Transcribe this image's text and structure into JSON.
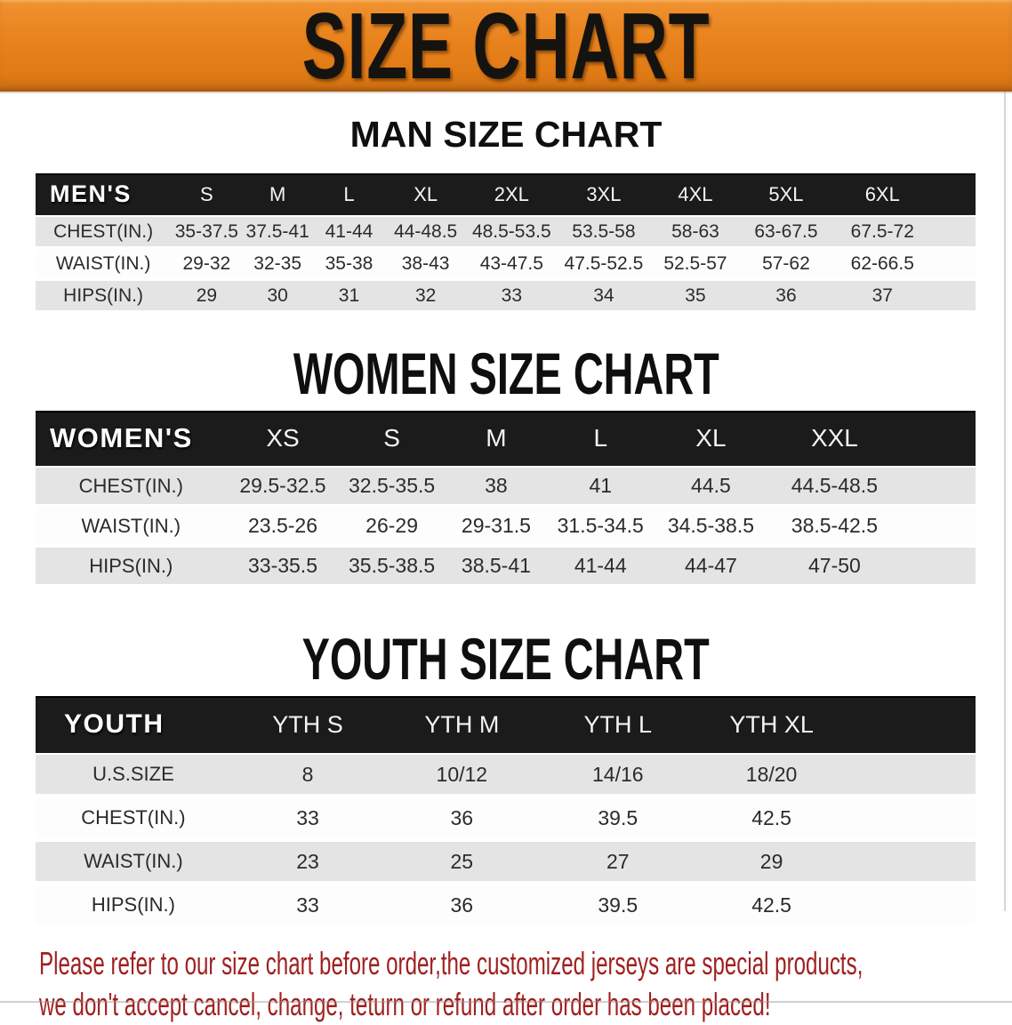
{
  "banner": {
    "title": "SIZE CHART",
    "bg_color": "#e8821c",
    "text_color": "#151310"
  },
  "sections": [
    {
      "id": "men",
      "title": "MAN SIZE CHART",
      "header_label": "MEN'S",
      "columns": [
        "S",
        "M",
        "L",
        "XL",
        "2XL",
        "3XL",
        "4XL",
        "5XL",
        "6XL"
      ],
      "rows": [
        {
          "label": "CHEST(IN.)",
          "values": [
            "35-37.5",
            "37.5-41",
            "41-44",
            "44-48.5",
            "48.5-53.5",
            "53.5-58",
            "58-63",
            "63-67.5",
            "67.5-72"
          ]
        },
        {
          "label": "WAIST(IN.)",
          "values": [
            "29-32",
            "32-35",
            "35-38",
            "38-43",
            "43-47.5",
            "47.5-52.5",
            "52.5-57",
            "57-62",
            "62-66.5"
          ]
        },
        {
          "label": "HIPS(IN.)",
          "values": [
            "29",
            "30",
            "31",
            "32",
            "33",
            "34",
            "35",
            "36",
            "37"
          ]
        }
      ]
    },
    {
      "id": "women",
      "title": "WOMEN SIZE CHART",
      "header_label": "WOMEN'S",
      "columns": [
        "XS",
        "S",
        "M",
        "L",
        "XL",
        "XXL"
      ],
      "rows": [
        {
          "label": "CHEST(IN.)",
          "values": [
            "29.5-32.5",
            "32.5-35.5",
            "38",
            "41",
            "44.5",
            "44.5-48.5"
          ]
        },
        {
          "label": "WAIST(IN.)",
          "values": [
            "23.5-26",
            "26-29",
            "29-31.5",
            "31.5-34.5",
            "34.5-38.5",
            "38.5-42.5"
          ]
        },
        {
          "label": "HIPS(IN.)",
          "values": [
            "33-35.5",
            "35.5-38.5",
            "38.5-41",
            "41-44",
            "44-47",
            "47-50"
          ]
        }
      ]
    },
    {
      "id": "youth",
      "title": "YOUTH SIZE CHART",
      "header_label": "YOUTH",
      "columns": [
        "YTH S",
        "YTH M",
        "YTH L",
        "YTH XL"
      ],
      "rows": [
        {
          "label": "U.S.SIZE",
          "values": [
            "8",
            "10/12",
            "14/16",
            "18/20"
          ]
        },
        {
          "label": "CHEST(IN.)",
          "values": [
            "33",
            "36",
            "39.5",
            "42.5"
          ]
        },
        {
          "label": "WAIST(IN.)",
          "values": [
            "23",
            "25",
            "27",
            "29"
          ]
        },
        {
          "label": "HIPS(IN.)",
          "values": [
            "33",
            "36",
            "39.5",
            "42.5"
          ]
        }
      ]
    }
  ],
  "header_colors": {
    "bar_bg": "#1b1b1b",
    "bar_text": "#ffffff",
    "row_gray": "#e4e4e4",
    "row_white": "#fdfdfd"
  },
  "disclaimer": {
    "line1": "Please refer to our size chart before order,the customized jerseys are special products,",
    "line2": "we don't accept cancel, change, teturn or refund after order has been placed!",
    "color": "#a02020"
  }
}
